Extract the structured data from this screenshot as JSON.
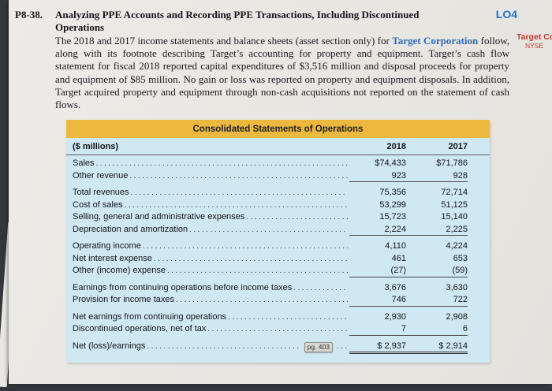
{
  "header": {
    "problem_number": "P8-38.",
    "title_line1": "Analyzing PPE Accounts and Recording PPE Transactions, Including Discontinued",
    "title_line2": "Operations",
    "lo_badge": "LO4",
    "margin_company": "Target Co",
    "margin_exchange": "NYSE"
  },
  "paragraph": {
    "pre": "The 2018 and 2017 income statements and balance sheets (asset section only) for ",
    "company": "Target Corporation",
    "post": " follow, along with its footnote describing Target’s accounting for property and equipment. Target’s cash flow statement for fiscal 2018 reported capital expenditures of $3,516 million and disposal proceeds for property and equipment of $85 million. No gain or loss was reported on property and equipment disposals. In addition, Target acquired property and equipment through non-cash acquisitions not reported on the statement of cash flows."
  },
  "table": {
    "title": "Consolidated Statements of Operations",
    "unit_label": "($ millions)",
    "col_2018": "2018",
    "col_2017": "2017",
    "page_ref": "pg. 403",
    "colors": {
      "header_bg": "#ecb83d",
      "body_bg": "#cfe8f2"
    },
    "rows": [
      {
        "label": "Sales",
        "v2018": "$74,433",
        "v2017": "$71,786",
        "rule": false,
        "gap": false
      },
      {
        "label": "Other revenue",
        "v2018": "923",
        "v2017": "928",
        "rule": true,
        "gap": false
      },
      {
        "label": "Total revenues",
        "v2018": "75,356",
        "v2017": "72,714",
        "rule": false,
        "gap": true
      },
      {
        "label": "Cost of sales",
        "v2018": "53,299",
        "v2017": "51,125",
        "rule": false,
        "gap": false
      },
      {
        "label": "Selling, general and administrative expenses",
        "v2018": "15,723",
        "v2017": "15,140",
        "rule": false,
        "gap": false
      },
      {
        "label": "Depreciation and amortization",
        "v2018": "2,224",
        "v2017": "2,225",
        "rule": true,
        "gap": false
      },
      {
        "label": "Operating income",
        "v2018": "4,110",
        "v2017": "4,224",
        "rule": false,
        "gap": true
      },
      {
        "label": "Net interest expense",
        "v2018": "461",
        "v2017": "653",
        "rule": false,
        "gap": false
      },
      {
        "label": "Other (income) expense",
        "v2018": "(27)",
        "v2017": "(59)",
        "rule": true,
        "gap": false
      },
      {
        "label": "Earnings from continuing operations before income taxes",
        "v2018": "3,676",
        "v2017": "3,630",
        "rule": false,
        "gap": true
      },
      {
        "label": "Provision for income taxes",
        "v2018": "746",
        "v2017": "722",
        "rule": true,
        "gap": false
      },
      {
        "label": "Net earnings from continuing operations",
        "v2018": "2,930",
        "v2017": "2,908",
        "rule": false,
        "gap": true
      },
      {
        "label": "Discontinued operations, net of tax",
        "v2018": "7",
        "v2017": "6",
        "rule": true,
        "gap": false
      },
      {
        "label": "Net (loss)/earnings",
        "v2018": "$ 2,937",
        "v2017": "$ 2,914",
        "rule": false,
        "double_rule": true,
        "gap": true,
        "page_ref": true
      }
    ]
  }
}
